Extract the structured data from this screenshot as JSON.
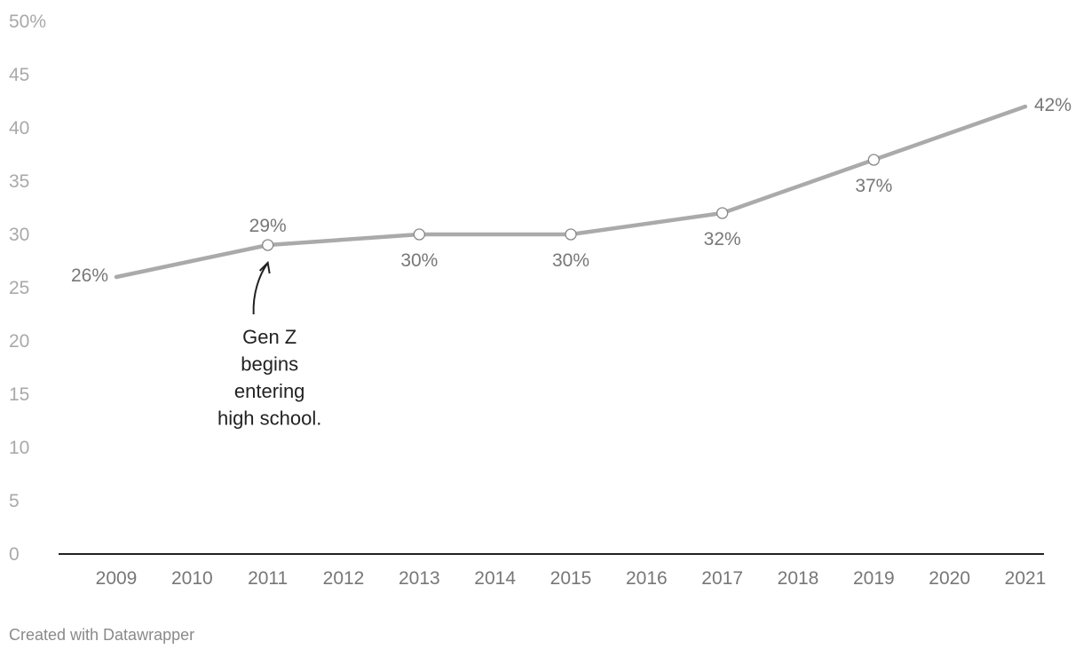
{
  "chart_data": {
    "type": "line",
    "x": [
      2009,
      2011,
      2013,
      2015,
      2017,
      2019,
      2021
    ],
    "series": [
      {
        "values": [
          26,
          29,
          30,
          30,
          32,
          37,
          42
        ]
      }
    ],
    "data_labels": [
      "26%",
      "29%",
      "30%",
      "30%",
      "32%",
      "37%",
      "42%"
    ],
    "x_ticks": [
      "2009",
      "2010",
      "2011",
      "2012",
      "2013",
      "2014",
      "2015",
      "2016",
      "2017",
      "2018",
      "2019",
      "2020",
      "2021"
    ],
    "y_ticks": [
      "0",
      "5",
      "10",
      "15",
      "20",
      "25",
      "30",
      "35",
      "40",
      "45",
      "50%"
    ],
    "xlim": [
      2009,
      2021
    ],
    "ylim": [
      0,
      50
    ],
    "grid": false,
    "line_color": "#aaaaaa",
    "annotation": {
      "x": 2011,
      "y": 29,
      "lines": [
        "Gen Z",
        "begins",
        "entering",
        "high school."
      ]
    }
  },
  "credit": "Created with Datawrapper"
}
